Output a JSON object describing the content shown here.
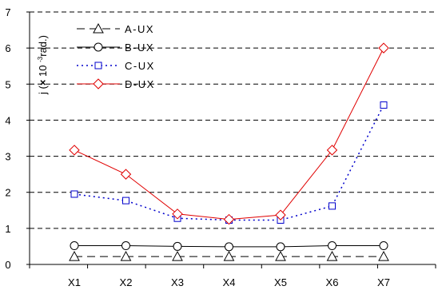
{
  "chart_data": {
    "type": "line",
    "ylabel_parts": [
      "j (",
      "×",
      " 10 ",
      "-3",
      "rad.)"
    ],
    "categories": [
      "X1",
      "X2",
      "X3",
      "X4",
      "X5",
      "X6",
      "X7"
    ],
    "ylim": [
      0,
      7
    ],
    "yticks": [
      "0",
      "1",
      "2",
      "3",
      "4",
      "5",
      "6",
      "7"
    ],
    "grid": "horizontal dashed",
    "legend_position": "top-left",
    "series": [
      {
        "name": "A-UX",
        "values": [
          0.22,
          0.22,
          0.22,
          0.22,
          0.22,
          0.22,
          0.22
        ],
        "color": "#000000",
        "marker": "triangle",
        "dash": "10,6"
      },
      {
        "name": "B-UX",
        "values": [
          0.52,
          0.52,
          0.5,
          0.49,
          0.49,
          0.52,
          0.52
        ],
        "color": "#000000",
        "marker": "circle",
        "dash": ""
      },
      {
        "name": "C-UX",
        "values": [
          1.95,
          1.77,
          1.28,
          1.23,
          1.23,
          1.62,
          4.42
        ],
        "color": "#0000cc",
        "marker": "square",
        "dash": "2,4"
      },
      {
        "name": "D-UX",
        "values": [
          3.17,
          2.5,
          1.4,
          1.25,
          1.37,
          3.17,
          6.0
        ],
        "color": "#e00000",
        "marker": "diamond",
        "dash": ""
      }
    ]
  }
}
